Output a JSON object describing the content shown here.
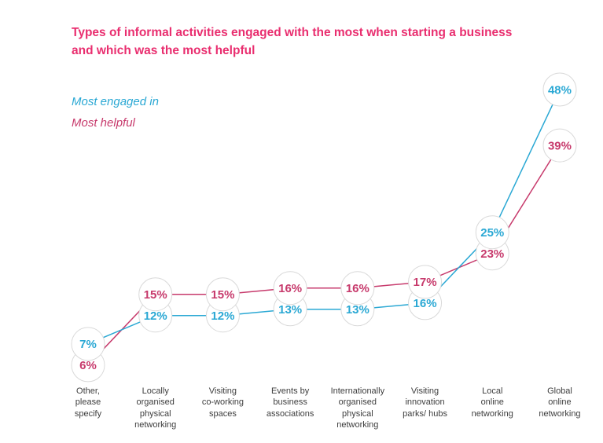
{
  "title": "Types of informal activities engaged with the most when starting a business\nand which was the most helpful",
  "colors": {
    "title": "#e92e6f",
    "engaged": "#2aa8d4",
    "helpful": "#c73a6c",
    "circle_fill": "#ffffff",
    "circle_border": "#d9d9d9",
    "axis_label": "#3d3d3d",
    "background": "#ffffff"
  },
  "legend": {
    "items": [
      "Most engaged in",
      "Most helpful"
    ]
  },
  "chart_data": {
    "type": "line",
    "title": "Types of informal activities engaged with the most when starting a business and which was the most helpful",
    "categories": [
      "Other,\nplease\nspecify",
      "Locally\norganised\nphysical\nnetworking",
      "Visiting\nco-working\nspaces",
      "Events by\nbusiness\nassociations",
      "Internationally\norganised\nphysical\nnetworking",
      "Visiting\ninnovation\nparks/ hubs",
      "Local\nonline\nnetworking",
      "Global\nonline\nnetworking"
    ],
    "series": [
      {
        "name": "Most engaged in",
        "color": "#2aa8d4",
        "values": [
          7,
          12,
          12,
          13,
          13,
          16,
          25,
          48
        ]
      },
      {
        "name": "Most helpful",
        "color": "#c73a6c",
        "values": [
          6,
          15,
          15,
          16,
          16,
          17,
          23,
          39
        ]
      }
    ],
    "value_suffix": "%",
    "ylim": [
      0,
      50
    ],
    "grid": false,
    "axes": "hidden",
    "legend_position": "upper-left",
    "point_style": "value-in-circle"
  }
}
